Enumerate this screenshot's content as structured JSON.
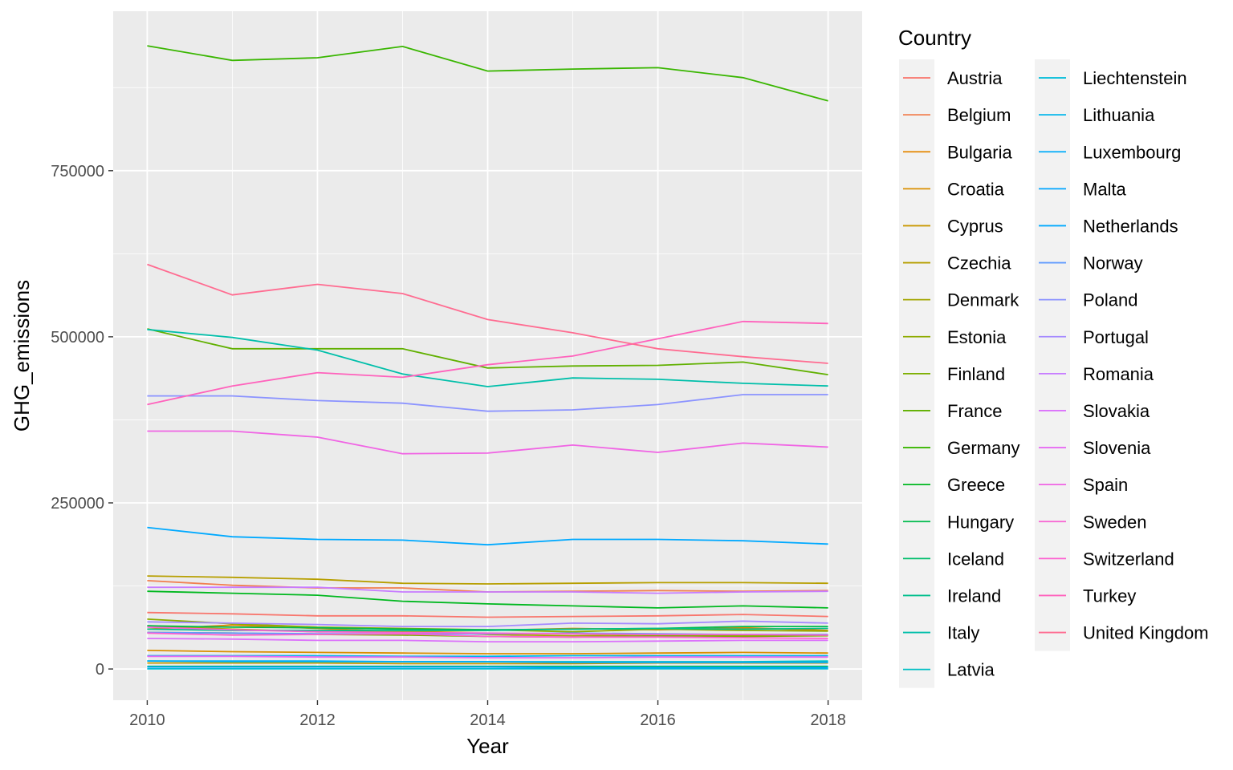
{
  "chart_data": {
    "type": "line",
    "xlabel": "Year",
    "ylabel": "GHG_emissions",
    "x": [
      2010,
      2011,
      2012,
      2013,
      2014,
      2015,
      2016,
      2017,
      2018
    ],
    "xlim": [
      2009.6,
      2018.4
    ],
    "ylim": [
      -47000,
      990000
    ],
    "x_ticks": [
      2010,
      2012,
      2014,
      2016,
      2018
    ],
    "x_tick_labels": [
      "2010",
      "2012",
      "2014",
      "2016",
      "2018"
    ],
    "y_ticks": [
      0,
      250000,
      500000,
      750000
    ],
    "y_tick_labels": [
      "0",
      "250000",
      "500000",
      "750000"
    ],
    "grid": true,
    "legend": {
      "title": "Country",
      "position": "right",
      "columns": 2
    },
    "series": [
      {
        "name": "Austria",
        "color": "#F8766D",
        "values": [
          85000,
          83000,
          80000,
          80000,
          78000,
          79000,
          80000,
          82000,
          79000
        ]
      },
      {
        "name": "Belgium",
        "color": "#F17F50",
        "values": [
          133000,
          126000,
          122000,
          122000,
          116000,
          117000,
          118000,
          117000,
          118000
        ]
      },
      {
        "name": "Bulgaria",
        "color": "#E58700",
        "values": [
          60000,
          66000,
          61000,
          56000,
          58000,
          61000,
          59000,
          62000,
          58000
        ]
      },
      {
        "name": "Croatia",
        "color": "#DA8F00",
        "values": [
          28000,
          26000,
          25000,
          24000,
          23000,
          23000,
          24000,
          25000,
          24000
        ]
      },
      {
        "name": "Cyprus",
        "color": "#C99800",
        "values": [
          9000,
          9000,
          9000,
          8000,
          8000,
          8000,
          9000,
          9000,
          9000
        ]
      },
      {
        "name": "Czechia",
        "color": "#B79F00",
        "values": [
          140000,
          138000,
          135000,
          129000,
          128000,
          129000,
          130000,
          130000,
          129000
        ]
      },
      {
        "name": "Denmark",
        "color": "#A3A500",
        "values": [
          65000,
          60000,
          56000,
          57000,
          52000,
          50000,
          52000,
          50000,
          50000
        ]
      },
      {
        "name": "Estonia",
        "color": "#8EAB00",
        "values": [
          75000,
          68000,
          63000,
          61000,
          59000,
          56000,
          60000,
          58000,
          57000
        ]
      },
      {
        "name": "Finland",
        "color": "#7CAE00",
        "values": [
          55000,
          54000,
          52000,
          51000,
          49000,
          48000,
          50000,
          49000,
          50000
        ]
      },
      {
        "name": "France",
        "color": "#61B000",
        "values": [
          512000,
          482000,
          482000,
          482000,
          453000,
          456000,
          457000,
          462000,
          443000
        ]
      },
      {
        "name": "Germany",
        "color": "#39B600",
        "values": [
          938000,
          916000,
          920000,
          937000,
          900000,
          903000,
          905000,
          890000,
          855000
        ]
      },
      {
        "name": "Greece",
        "color": "#00B81F",
        "values": [
          117000,
          114000,
          111000,
          102000,
          98000,
          95000,
          92000,
          95000,
          92000
        ]
      },
      {
        "name": "Hungary",
        "color": "#00BB4E",
        "values": [
          65000,
          63000,
          62000,
          60000,
          59000,
          60000,
          61000,
          64000,
          64000
        ]
      },
      {
        "name": "Iceland",
        "color": "#00BE6C",
        "values": [
          4000,
          4000,
          4000,
          4000,
          4000,
          4000,
          4000,
          4000,
          4000
        ]
      },
      {
        "name": "Ireland",
        "color": "#00BF8C",
        "values": [
          60000,
          58000,
          58000,
          58000,
          58000,
          60000,
          61000,
          60000,
          61000
        ]
      },
      {
        "name": "Italy",
        "color": "#00BFAA",
        "values": [
          511000,
          499000,
          480000,
          444000,
          425000,
          438000,
          436000,
          430000,
          426000
        ]
      },
      {
        "name": "Latvia",
        "color": "#00BFC4",
        "values": [
          12000,
          11000,
          11000,
          11000,
          11000,
          11000,
          11000,
          11000,
          12000
        ]
      },
      {
        "name": "Liechtenstein",
        "color": "#00BCD8",
        "values": [
          200,
          200,
          200,
          200,
          200,
          200,
          200,
          200,
          200
        ]
      },
      {
        "name": "Lithuania",
        "color": "#00B5EB",
        "values": [
          20000,
          20000,
          20000,
          19000,
          19000,
          20000,
          20000,
          20000,
          20000
        ]
      },
      {
        "name": "Luxembourg",
        "color": "#00ADFA",
        "values": [
          12000,
          12000,
          12000,
          11000,
          11000,
          10000,
          10000,
          10000,
          10000
        ]
      },
      {
        "name": "Malta",
        "color": "#00A5FF",
        "values": [
          3000,
          3000,
          3000,
          3000,
          3000,
          2000,
          2000,
          2000,
          2000
        ]
      },
      {
        "name": "Netherlands",
        "color": "#00A9FF",
        "values": [
          213000,
          199000,
          195000,
          194000,
          187000,
          195000,
          195000,
          193000,
          188000
        ]
      },
      {
        "name": "Norway",
        "color": "#619CFF",
        "values": [
          55000,
          54000,
          53000,
          53000,
          53000,
          54000,
          53000,
          52000,
          52000
        ]
      },
      {
        "name": "Poland",
        "color": "#8B93FF",
        "values": [
          411000,
          411000,
          404000,
          400000,
          388000,
          390000,
          398000,
          413000,
          413000
        ]
      },
      {
        "name": "Portugal",
        "color": "#A58AFF",
        "values": [
          71000,
          69000,
          67000,
          64000,
          64000,
          69000,
          68000,
          72000,
          69000
        ]
      },
      {
        "name": "Romania",
        "color": "#C77CFF",
        "values": [
          123000,
          123000,
          123000,
          116000,
          116000,
          116000,
          114000,
          116000,
          117000
        ]
      },
      {
        "name": "Slovakia",
        "color": "#DB72FB",
        "values": [
          46000,
          45000,
          43000,
          43000,
          41000,
          41000,
          42000,
          43000,
          43000
        ]
      },
      {
        "name": "Slovenia",
        "color": "#E76BF3",
        "values": [
          19000,
          19000,
          18000,
          18000,
          17000,
          17000,
          18000,
          18000,
          18000
        ]
      },
      {
        "name": "Spain",
        "color": "#F064E4",
        "values": [
          358000,
          358000,
          349000,
          324000,
          325000,
          337000,
          326000,
          340000,
          334000
        ]
      },
      {
        "name": "Sweden",
        "color": "#F863D3",
        "values": [
          63000,
          59000,
          56000,
          55000,
          54000,
          53000,
          52000,
          52000,
          51000
        ]
      },
      {
        "name": "Switzerland",
        "color": "#FD61D1",
        "values": [
          54000,
          51000,
          52000,
          53000,
          49000,
          48000,
          48000,
          47000,
          46000
        ]
      },
      {
        "name": "Turkey",
        "color": "#FF62BC",
        "values": [
          398000,
          426000,
          446000,
          439000,
          458000,
          471000,
          497000,
          523000,
          520000
        ]
      },
      {
        "name": "United Kingdom",
        "color": "#FF6C91",
        "values": [
          609000,
          563000,
          579000,
          565000,
          526000,
          506000,
          482000,
          470000,
          460000
        ]
      }
    ]
  }
}
